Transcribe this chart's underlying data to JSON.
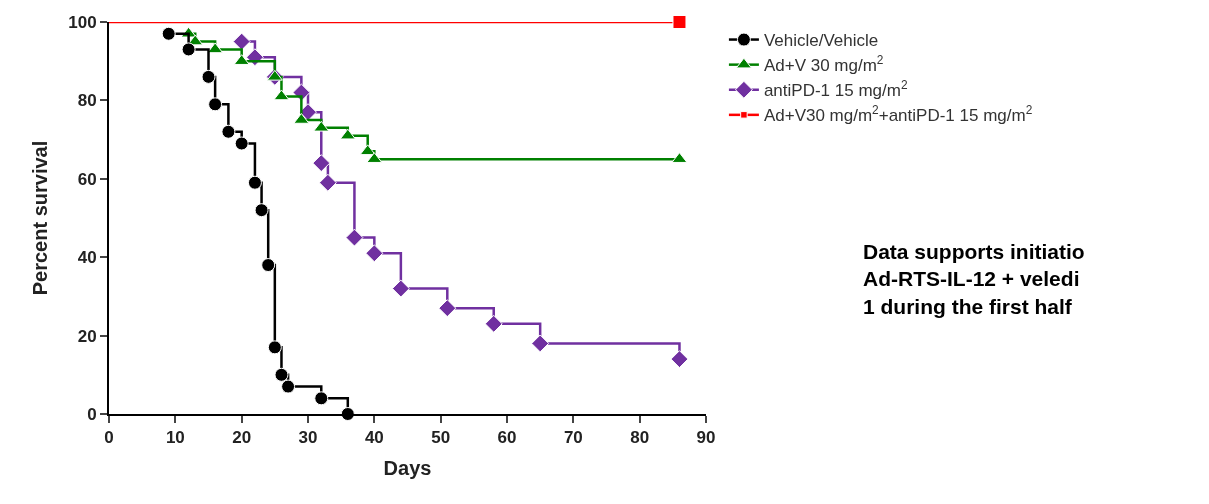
{
  "chart_data": {
    "type": "step",
    "xlabel": "Days",
    "ylabel": "Percent survival",
    "xlim": [
      0,
      90
    ],
    "xticks": [
      0,
      10,
      20,
      30,
      40,
      50,
      60,
      70,
      80,
      90
    ],
    "ylim": [
      0,
      100
    ],
    "yticks": [
      0,
      20,
      40,
      60,
      80,
      100
    ],
    "legend": "top right",
    "series": [
      {
        "name": "Vehicle/Vehicle",
        "color": "#000000",
        "marker": "circle",
        "x": [
          9,
          12,
          15,
          16,
          18,
          20,
          22,
          23,
          24,
          25,
          26,
          27,
          32,
          36
        ],
        "values": [
          97,
          93,
          86,
          79,
          72,
          69,
          59,
          52,
          38,
          17,
          10,
          7,
          4,
          0
        ]
      },
      {
        "name": "Ad+V 30 mg/m$^{2}$",
        "color": "#008000",
        "marker": "triangle",
        "x": [
          12,
          13,
          16,
          20,
          25,
          26,
          29,
          32,
          36,
          39,
          40,
          86
        ],
        "values": [
          97,
          95,
          93,
          90,
          86,
          81,
          75,
          73,
          71,
          67,
          65,
          65
        ]
      },
      {
        "name": "antiPD-1 15 mg/m$^{2}$",
        "color": "#7030a0",
        "marker": "diamond",
        "x": [
          20,
          22,
          25,
          29,
          30,
          32,
          33,
          37,
          40,
          44,
          51,
          58,
          65,
          86
        ],
        "values": [
          95,
          91,
          86,
          82,
          77,
          64,
          59,
          45,
          41,
          32,
          27,
          23,
          18,
          14
        ]
      },
      {
        "name": "Ad+V30 mg/m$^{2}$+antiPD-1 15 mg/m$^{2}$",
        "color": "#ff0000",
        "marker": "square",
        "x": [
          0,
          86
        ],
        "values": [
          100,
          100
        ]
      }
    ],
    "annotations": [
      "Data supports initiatio\nAd-RTS-IL-12 + veledi\n1 during the first half"
    ]
  }
}
